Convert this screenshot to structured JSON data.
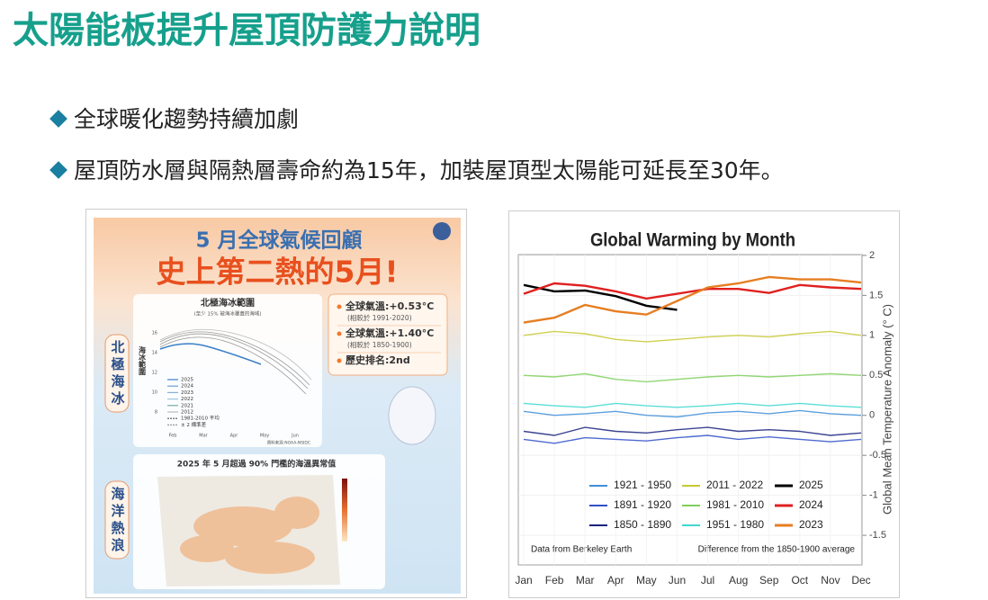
{
  "slide": {
    "title": "太陽能板提升屋頂防護力說明",
    "bullets": [
      "全球暖化趨勢持續加劇",
      "屋頂防水層與隔熱層壽命約為15年，加裝屋頂型太陽能可延長至30年。"
    ]
  },
  "infographic": {
    "heading": "5 月全球氣候回顧",
    "headline": "史上第二熱的5月!",
    "ice_label": "北極海冰",
    "ice_chart": {
      "title": "北極海冰範圍",
      "subtitle": "(至少 15% 被海冰覆蓋的海域)",
      "y_label": "海冰範圍",
      "yticks": [
        "16",
        "14",
        "12",
        "10",
        "8"
      ],
      "xticks": [
        "Feb",
        "Mar",
        "Apr",
        "May",
        "Jun"
      ],
      "legend": [
        "2025",
        "2024",
        "2023",
        "2022",
        "2021",
        "2012",
        "1981-2010 平均",
        "± 2 標準差"
      ],
      "source": "資料來源:NOAA-NSIDC"
    },
    "facts": [
      {
        "text": "全球氣溫:+0.53°C",
        "note": "(相較於 1991-2020)"
      },
      {
        "text": "全球氣溫:+1.40°C",
        "note": "(相較於 1850-1900)"
      },
      {
        "text": "歷史排名:2nd"
      }
    ],
    "heat_label": "海洋熱浪",
    "map_title": "2025 年 5 月超過 90% 門檻的海溫異常值"
  },
  "chart_data": {
    "type": "line",
    "title": "Global Warming by Month",
    "y_label": "Global Mean Temperature Anomaly (° C)",
    "notes": [
      "Data from Berkeley Earth",
      "Difference from the 1850-1900 average"
    ],
    "categories": [
      "Jan",
      "Feb",
      "Mar",
      "Apr",
      "May",
      "Jun",
      "Jul",
      "Aug",
      "Sep",
      "Oct",
      "Nov",
      "Dec"
    ],
    "ylim": [
      -1.87,
      2.01
    ],
    "yticks": [
      -1.5,
      -1,
      -0.5,
      0,
      0.5,
      1,
      1.5,
      2
    ],
    "grid": true,
    "series": [
      {
        "name": "1921 - 1950",
        "color": "#3f8fd8",
        "values": [
          0.05,
          0.0,
          0.02,
          0.05,
          0.0,
          -0.02,
          0.03,
          0.05,
          0.02,
          0.06,
          0.02,
          0.0
        ]
      },
      {
        "name": "1891 - 1920",
        "color": "#3050c8",
        "values": [
          -0.3,
          -0.35,
          -0.28,
          -0.3,
          -0.32,
          -0.28,
          -0.25,
          -0.3,
          -0.27,
          -0.3,
          -0.33,
          -0.3
        ]
      },
      {
        "name": "1850 - 1890",
        "color": "#1a237e",
        "values": [
          -0.2,
          -0.25,
          -0.15,
          -0.2,
          -0.22,
          -0.18,
          -0.15,
          -0.2,
          -0.18,
          -0.2,
          -0.25,
          -0.22
        ]
      },
      {
        "name": "2011 - 2022",
        "color": "#c8c832",
        "values": [
          1.0,
          1.05,
          1.02,
          0.95,
          0.92,
          0.95,
          0.98,
          1.0,
          0.98,
          1.02,
          1.05,
          1.0
        ]
      },
      {
        "name": "1981 - 2010",
        "color": "#7ed05a",
        "values": [
          0.5,
          0.48,
          0.52,
          0.45,
          0.42,
          0.45,
          0.48,
          0.5,
          0.48,
          0.5,
          0.52,
          0.5
        ]
      },
      {
        "name": "1951 - 1980",
        "color": "#40d8d0",
        "values": [
          0.15,
          0.12,
          0.1,
          0.15,
          0.12,
          0.1,
          0.12,
          0.15,
          0.12,
          0.15,
          0.12,
          0.1
        ]
      },
      {
        "name": "2025",
        "color": "#000000",
        "values": [
          1.63,
          1.55,
          1.56,
          1.49,
          1.37,
          1.32,
          null,
          null,
          null,
          null,
          null,
          null
        ]
      },
      {
        "name": "2024",
        "color": "#e02020",
        "values": [
          1.52,
          1.65,
          1.62,
          1.55,
          1.46,
          1.52,
          1.58,
          1.58,
          1.53,
          1.63,
          1.6,
          1.58
        ]
      },
      {
        "name": "2023",
        "color": "#e67e22",
        "values": [
          1.16,
          1.22,
          1.38,
          1.3,
          1.26,
          1.43,
          1.6,
          1.65,
          1.73,
          1.7,
          1.7,
          1.66
        ]
      }
    ]
  }
}
